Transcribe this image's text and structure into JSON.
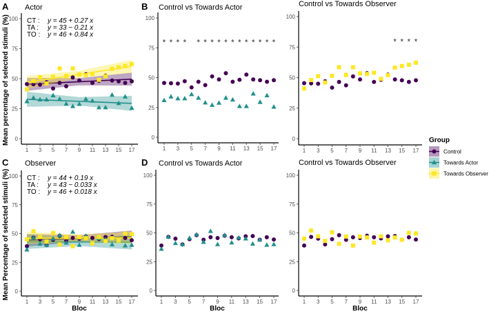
{
  "chart_data": {
    "type": "scatter",
    "ylabel_top": "Mean percentage of selected stimuli (%)",
    "ylabel_bottom": "Mean Percentage of selected stimuli (%)",
    "xlabel": "Bloc",
    "x": [
      1,
      2,
      3,
      4,
      5,
      6,
      7,
      8,
      9,
      10,
      11,
      12,
      13,
      14,
      15,
      16,
      17
    ],
    "xticks": [
      "1",
      "3",
      "5",
      "7",
      "9",
      "11",
      "13",
      "15",
      "17"
    ],
    "yticks": [
      "0",
      "25",
      "50",
      "75",
      "100"
    ],
    "ylim": [
      0,
      100
    ],
    "grid": false,
    "legend": {
      "title": "Group",
      "placement": "right",
      "items": [
        {
          "key": "CT",
          "label": "Control",
          "color": "#440154",
          "shape": "circle"
        },
        {
          "key": "TA",
          "label": "Towards Actor",
          "color": "#21908c",
          "shape": "triangle"
        },
        {
          "key": "TO",
          "label": "Towards Observer",
          "color": "#fde725",
          "shape": "square"
        }
      ]
    },
    "significance_marker": "*",
    "significance_level": 80,
    "conditions": {
      "actor": {
        "CT": [
          45.5,
          45.3,
          45,
          47,
          41.8,
          46.5,
          43.7,
          51,
          48.5,
          53.7,
          46.5,
          48.2,
          52.5,
          48.5,
          47.8,
          46.5,
          47.8
        ],
        "TA": [
          31,
          34,
          32.5,
          32.5,
          36,
          33,
          29,
          27,
          28.8,
          33,
          31.5,
          26,
          26,
          36.5,
          29.5,
          35,
          25.5
        ],
        "TO": [
          41,
          48,
          51.2,
          46,
          51.5,
          58.5,
          52.2,
          58.5,
          53.5,
          53,
          54,
          49,
          52,
          58.2,
          59.5,
          60.5,
          62.2
        ],
        "fits": {
          "CT": [
            45,
            0.27
          ],
          "TA": [
            33,
            -0.21
          ],
          "TO": [
            46,
            0.84
          ]
        }
      },
      "observer": {
        "CT": [
          39,
          46.5,
          45,
          40,
          44.5,
          48,
          44,
          46.2,
          45.5,
          47.5,
          46.2,
          45.2,
          47,
          47.2,
          44,
          46.2,
          44.2
        ],
        "TA": [
          36,
          46.5,
          41,
          40,
          45.5,
          48.5,
          42,
          51.5,
          40,
          48,
          41.5,
          45.8,
          45,
          40.5,
          44,
          39.5,
          40
        ],
        "TO": [
          45,
          52,
          47,
          43,
          50.5,
          40.5,
          46.8,
          39,
          46.8,
          46,
          41.5,
          47,
          43.5,
          46,
          44,
          50,
          49.5
        ],
        "fits": {
          "CT": [
            44,
            0.19
          ],
          "TA": [
            43,
            -0.033
          ],
          "TO": [
            46,
            0.018
          ]
        }
      }
    },
    "panels": [
      {
        "id": "A",
        "letter": "A",
        "title": "Actor",
        "condition": "actor",
        "groups": [
          "CT",
          "TA",
          "TO"
        ],
        "fit": true,
        "equations": [
          {
            "label": "CT :",
            "formula": "y = 45 + 0.27 x"
          },
          {
            "label": "TA :",
            "formula": "y = 33 − 0.21 x"
          },
          {
            "label": "TO :",
            "formula": "y = 46 + 0.84 x"
          }
        ],
        "significant_blocs": []
      },
      {
        "id": "B",
        "letter": "B",
        "title": "Control vs Towards Actor",
        "condition": "actor",
        "groups": [
          "CT",
          "TA"
        ],
        "fit": false,
        "equations": [],
        "significant_blocs": [
          1,
          2,
          3,
          4,
          6,
          7,
          8,
          9,
          10,
          11,
          12,
          13,
          14,
          15,
          16,
          17
        ]
      },
      {
        "id": "B2",
        "letter": "",
        "title": "Control vs Towards Observer",
        "condition": "actor",
        "groups": [
          "CT",
          "TO"
        ],
        "fit": false,
        "equations": [],
        "significant_blocs": [
          14,
          15,
          16,
          17
        ]
      },
      {
        "id": "C",
        "letter": "C",
        "title": "Observer",
        "condition": "observer",
        "groups": [
          "CT",
          "TA",
          "TO"
        ],
        "fit": true,
        "equations": [
          {
            "label": "CT :",
            "formula": "y = 44 + 0.19 x"
          },
          {
            "label": "TA :",
            "formula": "y = 43 − 0.033 x"
          },
          {
            "label": "TO :",
            "formula": "y = 46 + 0.018 x"
          }
        ],
        "significant_blocs": []
      },
      {
        "id": "D",
        "letter": "D",
        "title": "Control vs Towards Actor",
        "condition": "observer",
        "groups": [
          "CT",
          "TA"
        ],
        "fit": false,
        "equations": [],
        "significant_blocs": []
      },
      {
        "id": "D2",
        "letter": "",
        "title": "Control vs Towards Observer",
        "condition": "observer",
        "groups": [
          "CT",
          "TO"
        ],
        "fit": false,
        "equations": [],
        "significant_blocs": []
      }
    ]
  }
}
